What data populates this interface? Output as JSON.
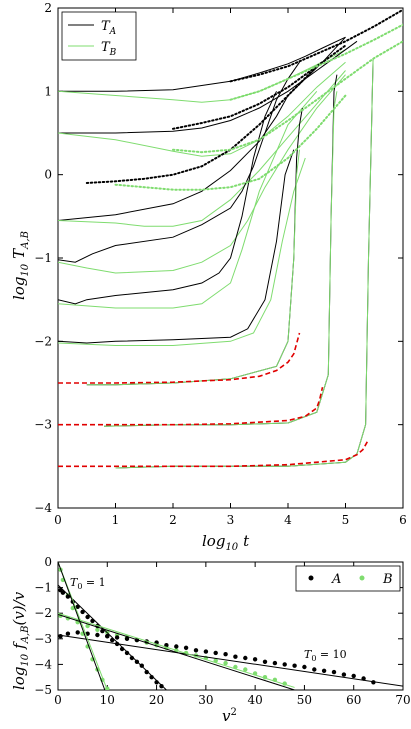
{
  "colors": {
    "A": "#000000",
    "B": "#7fdc6f",
    "fit": "#e00000"
  },
  "chart_data": [
    {
      "type": "line",
      "xlabel": "log10 t",
      "ylabel": "log10 T_A,B",
      "xlim": [
        0,
        6
      ],
      "ylim": [
        -4,
        2
      ],
      "xticks": [
        "0",
        "1",
        "2",
        "3",
        "4",
        "5",
        "6"
      ],
      "yticks": [
        "-4",
        "-3",
        "-2",
        "-1",
        "0",
        "1",
        "2"
      ],
      "legend": {
        "position": "top-left",
        "entries": [
          "T_A",
          "T_B"
        ]
      },
      "series": [
        {
          "group": "A",
          "style": "solid",
          "x": [
            0,
            1,
            2,
            3,
            3.5,
            4,
            4.3,
            4.6,
            5.0
          ],
          "y": [
            1,
            1,
            1.02,
            1.12,
            1.22,
            1.33,
            1.42,
            1.52,
            1.65
          ]
        },
        {
          "group": "B",
          "style": "solid",
          "x": [
            0,
            1,
            2,
            2.5,
            3,
            3.5,
            4,
            4.5,
            5.0
          ],
          "y": [
            1,
            0.95,
            0.9,
            0.87,
            0.9,
            1.0,
            1.15,
            1.32,
            1.5
          ]
        },
        {
          "group": "A",
          "style": "solid",
          "x": [
            0,
            1,
            2,
            2.5,
            3,
            3.5,
            4,
            4.3,
            4.6,
            4.8,
            5.0
          ],
          "y": [
            0.5,
            0.5,
            0.52,
            0.56,
            0.65,
            0.8,
            1.0,
            1.15,
            1.35,
            1.5,
            1.65
          ]
        },
        {
          "group": "B",
          "style": "solid",
          "x": [
            0,
            1,
            2,
            2.5,
            3,
            3.5,
            4,
            4.5,
            5.0
          ],
          "y": [
            0.5,
            0.42,
            0.28,
            0.22,
            0.25,
            0.42,
            0.7,
            1.05,
            1.35
          ]
        },
        {
          "group": "A",
          "style": "solid",
          "x": [
            0,
            1,
            2,
            2.5,
            3,
            3.5,
            3.8,
            4,
            4.3,
            4.5,
            4.7,
            4.9,
            5.2
          ],
          "y": [
            -0.55,
            -0.48,
            -0.35,
            -0.2,
            0.05,
            0.4,
            0.7,
            0.95,
            1.15,
            1.25,
            1.35,
            1.45,
            1.6
          ]
        },
        {
          "group": "B",
          "style": "solid",
          "x": [
            0,
            1,
            1.5,
            2,
            2.5,
            3,
            3.5,
            4,
            4.5,
            5.0
          ],
          "y": [
            -0.55,
            -0.58,
            -0.62,
            -0.62,
            -0.55,
            -0.3,
            0.05,
            0.45,
            0.85,
            1.25
          ]
        },
        {
          "group": "A",
          "style": "solid",
          "x": [
            0,
            0.3,
            0.6,
            1,
            2,
            2.5,
            3,
            3.2,
            3.4,
            3.6,
            3.8,
            4,
            4.2
          ],
          "y": [
            -1.02,
            -1.05,
            -0.95,
            -0.85,
            -0.75,
            -0.6,
            -0.4,
            -0.2,
            0.1,
            0.5,
            0.9,
            1.15,
            1.35
          ]
        },
        {
          "group": "B",
          "style": "solid",
          "x": [
            0,
            0.5,
            1,
            2,
            2.5,
            3,
            3.3,
            3.6,
            4,
            4.5,
            5.0
          ],
          "y": [
            -1.05,
            -1.12,
            -1.18,
            -1.15,
            -1.05,
            -0.85,
            -0.55,
            -0.15,
            0.3,
            0.8,
            1.2
          ]
        },
        {
          "group": "A",
          "style": "solid",
          "x": [
            0,
            0.3,
            0.5,
            1,
            2,
            2.5,
            2.8,
            3,
            3.2,
            3.4,
            3.6,
            3.8
          ],
          "y": [
            -1.5,
            -1.55,
            -1.5,
            -1.45,
            -1.38,
            -1.3,
            -1.18,
            -1.0,
            -0.5,
            0.2,
            0.7,
            1.0
          ]
        },
        {
          "group": "B",
          "style": "solid",
          "x": [
            0,
            1,
            2,
            2.5,
            3,
            3.2,
            3.5,
            4,
            4.5
          ],
          "y": [
            -1.55,
            -1.6,
            -1.6,
            -1.55,
            -1.3,
            -0.9,
            -0.2,
            0.6,
            1.0
          ]
        },
        {
          "group": "A",
          "style": "solid",
          "x": [
            0,
            0.5,
            1,
            2,
            3,
            3.3,
            3.6,
            3.8,
            3.95,
            4.1
          ],
          "y": [
            -2.0,
            -2.02,
            -2.0,
            -1.98,
            -1.95,
            -1.85,
            -1.5,
            -0.8,
            0.0,
            0.3
          ]
        },
        {
          "group": "B",
          "style": "solid",
          "x": [
            0,
            1,
            2,
            3,
            3.4,
            3.7,
            3.9,
            4.1,
            4.3
          ],
          "y": [
            -2.02,
            -2.05,
            -2.05,
            -2.0,
            -1.9,
            -1.5,
            -0.8,
            -0.2,
            0.2
          ]
        },
        {
          "group": "A",
          "style": "solid",
          "x": [
            0.5,
            1,
            2,
            3,
            3.8,
            4.0,
            4.1,
            4.15,
            4.2,
            4.25
          ],
          "y": [
            -2.52,
            -2.52,
            -2.5,
            -2.45,
            -2.3,
            -2.0,
            -1.0,
            0.2,
            0.6,
            0.8
          ]
        },
        {
          "group": "B",
          "style": "solid",
          "x": [
            0.5,
            1,
            2,
            3,
            3.8,
            4.0,
            4.1,
            4.15,
            4.2
          ],
          "y": [
            -2.52,
            -2.52,
            -2.5,
            -2.45,
            -2.3,
            -2.0,
            -1.0,
            0.0,
            0.3
          ]
        },
        {
          "group": "A",
          "style": "solid",
          "x": [
            0.8,
            2,
            3,
            4,
            4.5,
            4.7,
            4.75,
            4.8,
            4.85
          ],
          "y": [
            -3.02,
            -3.0,
            -3.0,
            -2.98,
            -2.85,
            -2.4,
            -0.5,
            1.0,
            1.2
          ]
        },
        {
          "group": "B",
          "style": "solid",
          "x": [
            0.8,
            2,
            3,
            4,
            4.5,
            4.7,
            4.75,
            4.8,
            4.85
          ],
          "y": [
            -3.02,
            -3.0,
            -3.0,
            -2.98,
            -2.85,
            -2.4,
            -0.5,
            0.8,
            1.0
          ]
        },
        {
          "group": "A",
          "style": "solid",
          "x": [
            1.0,
            2,
            3,
            4,
            5,
            5.2,
            5.35,
            5.4,
            5.45,
            5.48
          ],
          "y": [
            -3.52,
            -3.5,
            -3.5,
            -3.5,
            -3.45,
            -3.35,
            -3.0,
            -1.0,
            0.5,
            1.4
          ]
        },
        {
          "group": "B",
          "style": "solid",
          "x": [
            1.0,
            2,
            3,
            4,
            5,
            5.2,
            5.35,
            5.4,
            5.45,
            5.48
          ],
          "y": [
            -3.52,
            -3.5,
            -3.5,
            -3.5,
            -3.45,
            -3.35,
            -3.0,
            -1.0,
            0.5,
            1.4
          ]
        },
        {
          "group": "A",
          "style": "dotted",
          "x": [
            3.0,
            3.5,
            4.0,
            4.5,
            5.0,
            5.5,
            6.0
          ],
          "y": [
            1.12,
            1.2,
            1.3,
            1.45,
            1.6,
            1.78,
            1.98
          ]
        },
        {
          "group": "A",
          "style": "dotted",
          "x": [
            2.0,
            2.5,
            3.0,
            3.5,
            4.0,
            4.5,
            5.0
          ],
          "y": [
            0.55,
            0.62,
            0.7,
            0.85,
            1.05,
            1.3,
            1.55
          ]
        },
        {
          "group": "A",
          "style": "dotted",
          "x": [
            0.5,
            1,
            1.5,
            2,
            2.5,
            3,
            3.5,
            4,
            4.5
          ],
          "y": [
            -0.1,
            -0.08,
            -0.05,
            0.0,
            0.1,
            0.3,
            0.6,
            0.95,
            1.3
          ]
        },
        {
          "group": "B",
          "style": "dotted",
          "x": [
            3.0,
            3.5,
            4.0,
            4.5,
            5.0,
            5.5,
            6.0
          ],
          "y": [
            0.9,
            1.0,
            1.15,
            1.3,
            1.45,
            1.62,
            1.8
          ]
        },
        {
          "group": "B",
          "style": "dotted",
          "x": [
            2.0,
            2.5,
            3.0,
            3.5,
            4.0,
            4.5,
            5.0,
            5.5,
            6.0
          ],
          "y": [
            0.3,
            0.27,
            0.3,
            0.42,
            0.65,
            0.9,
            1.15,
            1.4,
            1.6
          ]
        },
        {
          "group": "B",
          "style": "dotted",
          "x": [
            1.0,
            1.5,
            2.0,
            2.5,
            3.0,
            3.5,
            4.0,
            4.5,
            5.0
          ],
          "y": [
            -0.12,
            -0.15,
            -0.18,
            -0.18,
            -0.15,
            -0.05,
            0.2,
            0.55,
            0.95
          ]
        },
        {
          "group": "fit",
          "style": "dashed",
          "x": [
            0,
            1,
            2,
            3,
            3.5,
            3.8,
            4.0,
            4.1,
            4.2
          ],
          "y": [
            -2.5,
            -2.5,
            -2.49,
            -2.46,
            -2.42,
            -2.35,
            -2.25,
            -2.15,
            -1.9
          ]
        },
        {
          "group": "fit",
          "style": "dashed",
          "x": [
            0,
            1,
            2,
            3,
            4,
            4.3,
            4.5,
            4.55,
            4.6
          ],
          "y": [
            -3.0,
            -3.0,
            -3.0,
            -2.99,
            -2.95,
            -2.9,
            -2.8,
            -2.7,
            -2.55
          ]
        },
        {
          "group": "fit",
          "style": "dashed",
          "x": [
            0,
            1,
            2,
            3,
            4,
            5,
            5.2,
            5.3,
            5.4
          ],
          "y": [
            -3.5,
            -3.5,
            -3.5,
            -3.5,
            -3.48,
            -3.42,
            -3.36,
            -3.3,
            -3.18
          ]
        }
      ]
    },
    {
      "type": "scatter",
      "xlabel": "v^2",
      "ylabel": "log10 f_A,B(v)/v",
      "xlim": [
        0,
        70
      ],
      "ylim": [
        -5,
        0
      ],
      "xticks": [
        "0",
        "10",
        "20",
        "30",
        "40",
        "50",
        "60",
        "70"
      ],
      "yticks": [
        "-5",
        "-4",
        "-3",
        "-2",
        "-1",
        "0"
      ],
      "legend": {
        "position": "top-right",
        "entries": [
          "A",
          "B"
        ]
      },
      "annotations": [
        "T_0 = 1",
        "T_0 = 10"
      ],
      "series": [
        {
          "group": "A",
          "x": [
            0.5,
            1,
            2,
            3,
            4,
            5,
            6,
            7,
            8,
            9,
            10,
            11,
            12,
            13,
            14,
            15,
            16,
            17,
            18,
            19,
            20,
            21
          ],
          "y": [
            -1.1,
            -1.2,
            -1.35,
            -1.55,
            -1.75,
            -1.95,
            -2.15,
            -2.3,
            -2.5,
            -2.7,
            -2.9,
            -3.05,
            -3.2,
            -3.4,
            -3.55,
            -3.75,
            -3.9,
            -4.05,
            -4.3,
            -4.5,
            -4.7,
            -4.85
          ]
        },
        {
          "group": "A",
          "x": [
            0.5,
            2,
            4,
            6,
            8,
            10,
            12,
            14,
            16,
            18,
            20,
            22,
            24,
            26,
            28,
            30,
            32,
            34,
            36,
            38,
            40,
            42,
            44,
            46,
            48,
            50,
            52,
            54,
            56,
            58,
            60,
            62,
            64
          ],
          "y": [
            -2.9,
            -2.8,
            -2.75,
            -2.8,
            -2.85,
            -2.9,
            -2.95,
            -3.0,
            -3.05,
            -3.1,
            -3.15,
            -3.25,
            -3.3,
            -3.35,
            -3.45,
            -3.5,
            -3.55,
            -3.6,
            -3.7,
            -3.75,
            -3.8,
            -3.9,
            -3.95,
            -4.0,
            -4.05,
            -4.1,
            -4.2,
            -4.25,
            -4.3,
            -4.4,
            -4.45,
            -4.55,
            -4.7
          ]
        },
        {
          "group": "B",
          "x": [
            0.5,
            1,
            2,
            3,
            4,
            5,
            6,
            7,
            8,
            9,
            10
          ],
          "y": [
            -0.3,
            -0.7,
            -1.3,
            -1.8,
            -2.3,
            -2.8,
            -3.3,
            -3.8,
            -4.2,
            -4.6,
            -4.95
          ]
        },
        {
          "group": "B",
          "x": [
            0.5,
            2,
            4,
            6,
            8,
            10,
            12,
            14,
            16,
            18,
            20,
            22,
            24,
            26,
            28,
            30,
            32,
            34,
            36,
            38,
            40,
            42,
            44,
            46
          ],
          "y": [
            -2.1,
            -2.2,
            -2.35,
            -2.5,
            -2.65,
            -2.75,
            -2.85,
            -2.95,
            -3.05,
            -3.15,
            -3.25,
            -3.35,
            -3.45,
            -3.55,
            -3.65,
            -3.75,
            -3.85,
            -3.95,
            -4.1,
            -4.2,
            -4.35,
            -4.5,
            -4.6,
            -4.75
          ]
        }
      ],
      "fit_lines": [
        {
          "group": "A",
          "x": [
            0,
            22
          ],
          "y": [
            -0.9,
            -5.0
          ]
        },
        {
          "group": "A",
          "x": [
            0,
            70
          ],
          "y": [
            -2.85,
            -4.85
          ]
        },
        {
          "group": "B",
          "x": [
            0,
            10
          ],
          "y": [
            0.0,
            -5.0
          ]
        },
        {
          "group": "B",
          "x": [
            0,
            48
          ],
          "y": [
            -2.0,
            -4.9
          ]
        },
        {
          "group": "A",
          "x": [
            0,
            9.5
          ],
          "y": [
            0.0,
            -5.0
          ]
        },
        {
          "group": "A",
          "x": [
            0,
            48
          ],
          "y": [
            -2.05,
            -5.0
          ]
        }
      ]
    }
  ],
  "labels": {
    "top_xlabel_main": "log",
    "top_xlabel_sub": "10",
    "top_xlabel_var": "t",
    "top_ylabel_main": "log",
    "top_ylabel_sub": "10",
    "top_ylabel_var": "T",
    "top_ylabel_varsub": "A,B",
    "legend_A": "T",
    "legend_A_sub": "A",
    "legend_B": "T",
    "legend_B_sub": "B",
    "bot_xlabel": "v",
    "bot_xlabel_sup": "2",
    "bot_ylabel_main": "log",
    "bot_ylabel_sub": "10",
    "bot_ylabel_rest": "f",
    "bot_ylabel_restsub": "A,B",
    "bot_ylabel_tail": "(v)/v",
    "bot_legend_A": "A",
    "bot_legend_B": "B",
    "ann_1": "T",
    "ann_1_sub": "0",
    "ann_1_rest": " = 1",
    "ann_10": "T",
    "ann_10_sub": "0",
    "ann_10_rest": " = 10"
  }
}
